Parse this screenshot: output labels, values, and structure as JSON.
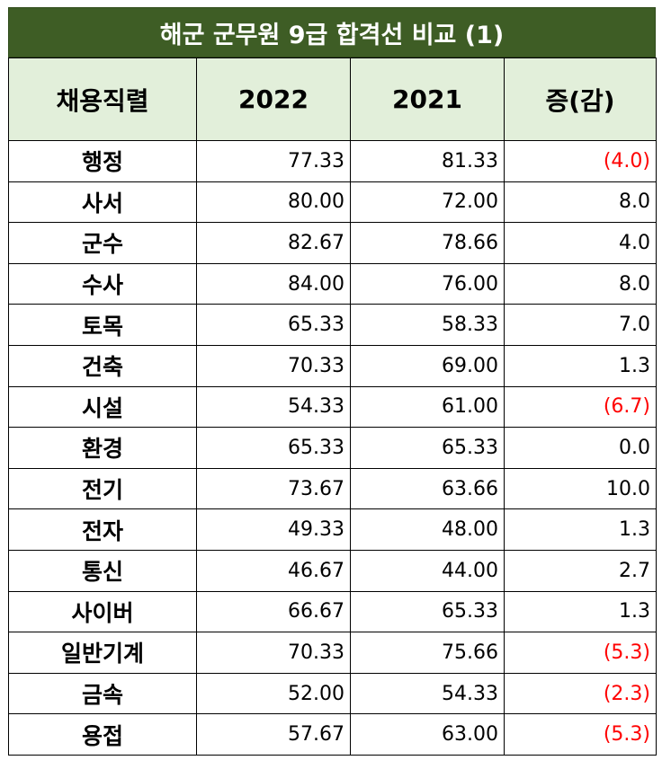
{
  "chart_data": {
    "type": "table",
    "title": "해군 군무원  9급 합격선 비교 (1)",
    "columns": [
      "채용직렬",
      "2022",
      "2021",
      "증(감)"
    ],
    "rows": [
      {
        "name": "행정",
        "y2022": "77.33",
        "y2021": "81.33",
        "diff": "(4.0)",
        "negative": true
      },
      {
        "name": "사서",
        "y2022": "80.00",
        "y2021": "72.00",
        "diff": "8.0",
        "negative": false
      },
      {
        "name": "군수",
        "y2022": "82.67",
        "y2021": "78.66",
        "diff": "4.0",
        "negative": false
      },
      {
        "name": "수사",
        "y2022": "84.00",
        "y2021": "76.00",
        "diff": "8.0",
        "negative": false
      },
      {
        "name": "토목",
        "y2022": "65.33",
        "y2021": "58.33",
        "diff": "7.0",
        "negative": false
      },
      {
        "name": "건축",
        "y2022": "70.33",
        "y2021": "69.00",
        "diff": "1.3",
        "negative": false
      },
      {
        "name": "시설",
        "y2022": "54.33",
        "y2021": "61.00",
        "diff": "(6.7)",
        "negative": true
      },
      {
        "name": "환경",
        "y2022": "65.33",
        "y2021": "65.33",
        "diff": "0.0",
        "negative": false
      },
      {
        "name": "전기",
        "y2022": "73.67",
        "y2021": "63.66",
        "diff": "10.0",
        "negative": false
      },
      {
        "name": "전자",
        "y2022": "49.33",
        "y2021": "48.00",
        "diff": "1.3",
        "negative": false
      },
      {
        "name": "통신",
        "y2022": "46.67",
        "y2021": "44.00",
        "diff": "2.7",
        "negative": false
      },
      {
        "name": "사이버",
        "y2022": "66.67",
        "y2021": "65.33",
        "diff": "1.3",
        "negative": false
      },
      {
        "name": "일반기계",
        "y2022": "70.33",
        "y2021": "75.66",
        "diff": "(5.3)",
        "negative": true
      },
      {
        "name": "금속",
        "y2022": "52.00",
        "y2021": "54.33",
        "diff": "(2.3)",
        "negative": true
      },
      {
        "name": "용접",
        "y2022": "57.67",
        "y2021": "63.00",
        "diff": "(5.3)",
        "negative": true
      }
    ]
  },
  "colors": {
    "title_bg": "#3e5d25",
    "header_bg": "#e2efda",
    "negative_text": "#ff0000"
  }
}
